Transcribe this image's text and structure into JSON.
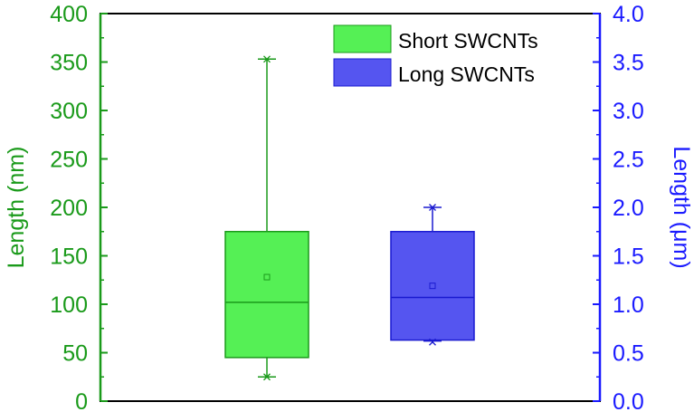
{
  "chart_data": {
    "type": "box",
    "ylabel_left": "Length (nm)",
    "ylabel_right": "Length (μm)",
    "ylim_left": [
      0,
      400
    ],
    "ylim_right": [
      0.0,
      4.0
    ],
    "yticks_left": [
      "0",
      "50",
      "100",
      "150",
      "200",
      "250",
      "300",
      "350",
      "400"
    ],
    "yticks_right": [
      "0.0",
      "0.5",
      "1.0",
      "1.5",
      "2.0",
      "2.5",
      "3.0",
      "3.5",
      "4.0"
    ],
    "legend_position": "top-right",
    "colors": {
      "left_axis": "#1a9a1a",
      "right_axis": "#1a1aff",
      "frame": "#000000"
    },
    "series": [
      {
        "name": "Short SWCNTs",
        "axis": "left",
        "unit": "nm",
        "fill": "#55f055",
        "stroke": "#1a9a1a",
        "whisker_low": 25,
        "q1": 45,
        "median": 102,
        "q3": 175,
        "whisker_high": 353,
        "mean": 128,
        "min": 25,
        "max": 353
      },
      {
        "name": "Long SWCNTs",
        "axis": "right",
        "unit": "μm",
        "fill": "#5555f0",
        "stroke": "#1a1ad0",
        "whisker_low": 0.62,
        "q1": 0.63,
        "median": 1.07,
        "q3": 1.75,
        "whisker_high": 2.0,
        "mean": 1.19,
        "min": 0.61,
        "max": 2.0
      }
    ]
  }
}
